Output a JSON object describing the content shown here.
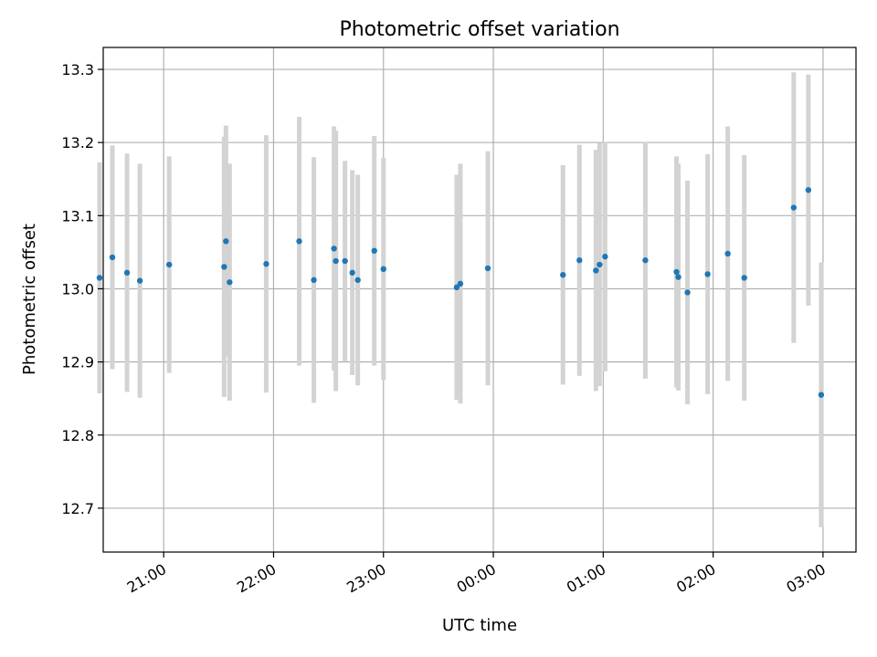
{
  "chart_data": {
    "type": "scatter",
    "title": "Photometric offset variation",
    "xlabel": "UTC time",
    "ylabel": "Photometric offset",
    "grid": true,
    "x_axis_type": "time",
    "x_range": [
      "20:27",
      "03:18"
    ],
    "ylim": [
      12.64,
      13.33
    ],
    "x_ticks": [
      "21:00",
      "22:00",
      "23:00",
      "00:00",
      "01:00",
      "02:00",
      "03:00"
    ],
    "y_ticks": [
      "12.7",
      "12.8",
      "12.9",
      "13.0",
      "13.1",
      "13.2",
      "13.3"
    ],
    "colors": {
      "point": "#1f77b4",
      "error_bar": "#d3d3d3",
      "grid": "#b0b0b0"
    },
    "series": [
      {
        "points": [
          {
            "x": "20:25",
            "y": 13.015,
            "err": 0.158
          },
          {
            "x": "20:32",
            "y": 13.043,
            "err": 0.153
          },
          {
            "x": "20:40",
            "y": 13.022,
            "err": 0.163
          },
          {
            "x": "20:47",
            "y": 13.011,
            "err": 0.16
          },
          {
            "x": "21:03",
            "y": 13.033,
            "err": 0.148
          },
          {
            "x": "21:33",
            "y": 13.03,
            "err": 0.178
          },
          {
            "x": "21:34",
            "y": 13.065,
            "err": 0.158
          },
          {
            "x": "21:36",
            "y": 13.009,
            "err": 0.162
          },
          {
            "x": "21:56",
            "y": 13.034,
            "err": 0.176
          },
          {
            "x": "22:14",
            "y": 13.065,
            "err": 0.17
          },
          {
            "x": "22:22",
            "y": 13.012,
            "err": 0.168
          },
          {
            "x": "22:33",
            "y": 13.055,
            "err": 0.167
          },
          {
            "x": "22:34",
            "y": 13.038,
            "err": 0.178
          },
          {
            "x": "22:39",
            "y": 13.038,
            "err": 0.137
          },
          {
            "x": "22:43",
            "y": 13.022,
            "err": 0.14
          },
          {
            "x": "22:46",
            "y": 13.012,
            "err": 0.144
          },
          {
            "x": "22:55",
            "y": 13.052,
            "err": 0.157
          },
          {
            "x": "23:00",
            "y": 13.027,
            "err": 0.152
          },
          {
            "x": "23:40",
            "y": 13.002,
            "err": 0.154
          },
          {
            "x": "23:42",
            "y": 13.007,
            "err": 0.164
          },
          {
            "x": "23:57",
            "y": 13.028,
            "err": 0.16
          },
          {
            "x": "00:38",
            "y": 13.019,
            "err": 0.15
          },
          {
            "x": "00:47",
            "y": 13.039,
            "err": 0.158
          },
          {
            "x": "00:56",
            "y": 13.025,
            "err": 0.165
          },
          {
            "x": "00:58",
            "y": 13.033,
            "err": 0.166
          },
          {
            "x": "01:01",
            "y": 13.044,
            "err": 0.157
          },
          {
            "x": "01:23",
            "y": 13.039,
            "err": 0.162
          },
          {
            "x": "01:40",
            "y": 13.023,
            "err": 0.158
          },
          {
            "x": "01:41",
            "y": 13.016,
            "err": 0.155
          },
          {
            "x": "01:46",
            "y": 12.995,
            "err": 0.153
          },
          {
            "x": "01:57",
            "y": 13.02,
            "err": 0.164
          },
          {
            "x": "02:08",
            "y": 13.048,
            "err": 0.174
          },
          {
            "x": "02:17",
            "y": 13.015,
            "err": 0.168
          },
          {
            "x": "02:44",
            "y": 13.111,
            "err": 0.185
          },
          {
            "x": "02:52",
            "y": 13.135,
            "err": 0.158
          },
          {
            "x": "02:59",
            "y": 12.855,
            "err": 0.181
          }
        ]
      }
    ]
  }
}
